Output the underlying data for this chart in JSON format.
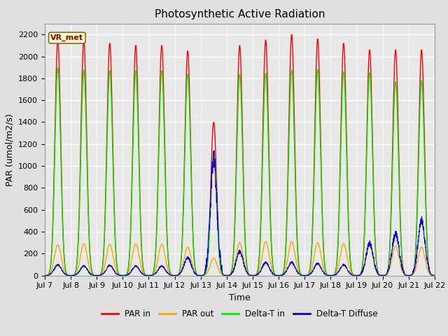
{
  "title": "Photosynthetic Active Radiation",
  "ylabel": "PAR (umol/m2/s)",
  "xlabel": "Time",
  "annotation": "VR_met",
  "ylim": [
    0,
    2300
  ],
  "colors": {
    "PAR_in": "#ff0000",
    "PAR_out": "#ffa500",
    "Delta_T_in": "#00ee00",
    "Delta_T_Diffuse": "#0000dd"
  },
  "legend": [
    "PAR in",
    "PAR out",
    "Delta-T in",
    "Delta-T Diffuse"
  ],
  "x_tick_labels": [
    "Jul 7",
    "Jul 8",
    "Jul 9",
    "Jul 10",
    "Jul 11",
    "Jul 12",
    "Jul 13",
    "Jul 14",
    "Jul 15",
    "Jul 16",
    "Jul 17",
    "Jul 18",
    "Jul 19",
    "Jul 20",
    "Jul 21",
    "Jul 22"
  ],
  "background_color": "#e0e0e0",
  "plot_bg_color": "#e8e8e8",
  "grid_color": "#ffffff",
  "num_days": 15,
  "ppd": 144,
  "par_in_peaks": [
    2150,
    2150,
    2120,
    2100,
    2100,
    2050,
    1400,
    2100,
    2150,
    2200,
    2160,
    2120,
    2060,
    2060,
    2060
  ],
  "par_out_peaks": [
    280,
    290,
    285,
    290,
    285,
    260,
    160,
    300,
    310,
    310,
    300,
    290,
    270,
    270,
    260
  ],
  "delta_in_peaks": [
    1900,
    1880,
    1870,
    1870,
    1870,
    1840,
    1130,
    1840,
    1850,
    1880,
    1880,
    1860,
    1850,
    1770,
    1780
  ],
  "diffuse_peaks": [
    90,
    80,
    85,
    80,
    80,
    150,
    980,
    200,
    110,
    110,
    100,
    90,
    270,
    350,
    460
  ],
  "annotation_color": "#8B0000",
  "annotation_bg": "#ffffcc",
  "annotation_edge": "#8B6914"
}
